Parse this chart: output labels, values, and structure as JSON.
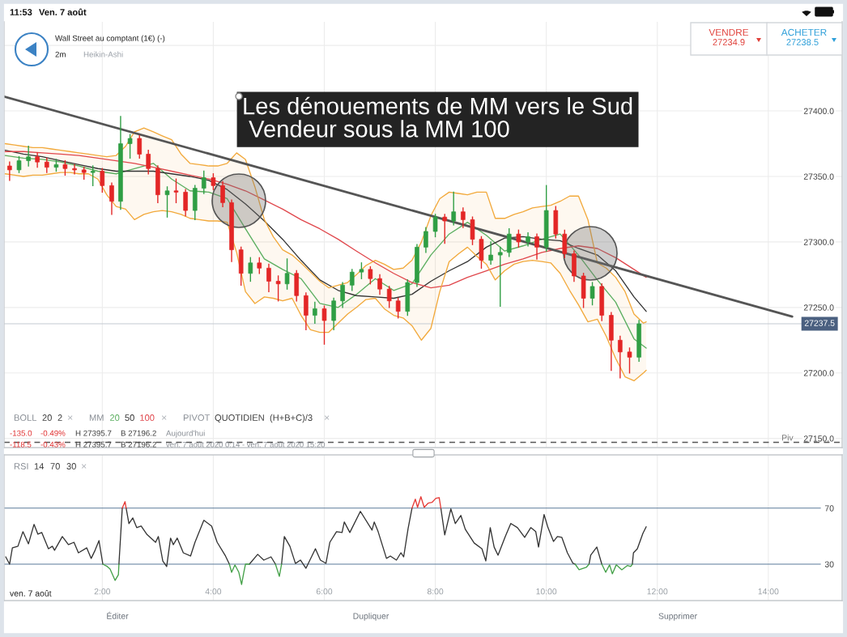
{
  "chart_data": [
    {
      "type": "candlestick",
      "title": "Wall Street au comptant (1€) (-)",
      "legend_title": "MM",
      "legend": "bottom left",
      "x": [
        0.33,
        0.5,
        0.67,
        0.83,
        1,
        1.17,
        1.33,
        1.5,
        1.67,
        1.83,
        2,
        2.17,
        2.33,
        2.5,
        2.67,
        2.83,
        3,
        3.17,
        3.33,
        3.5,
        3.67,
        3.83,
        4,
        4.17,
        4.33,
        4.5,
        4.67,
        4.83,
        5,
        5.17,
        5.33,
        5.5,
        5.67,
        5.83,
        6,
        6.17,
        6.33,
        6.5,
        6.67,
        6.83,
        7,
        7.17,
        7.33,
        7.5,
        7.67,
        7.83,
        8,
        8.17,
        8.33,
        8.5,
        8.67,
        8.83,
        9,
        9.17,
        9.33,
        9.5,
        9.67,
        9.83,
        10,
        10.17,
        10.33,
        10.5,
        10.67,
        10.83,
        11,
        11.17,
        11.33,
        11.5,
        11.67
      ],
      "ohlc": [
        [
          27358,
          27361,
          27347,
          27355
        ],
        [
          27355,
          27365,
          27353,
          27362
        ],
        [
          27362,
          27373,
          27358,
          27365
        ],
        [
          27365,
          27368,
          27357,
          27361
        ],
        [
          27361,
          27364,
          27353,
          27357
        ],
        [
          27357,
          27363,
          27354,
          27359
        ],
        [
          27359,
          27362,
          27351,
          27356
        ],
        [
          27356,
          27359,
          27352,
          27355
        ],
        [
          27355,
          27357,
          27348,
          27353
        ],
        [
          27353,
          27358,
          27343,
          27354
        ],
        [
          27354,
          27356,
          27338,
          27343
        ],
        [
          27343,
          27345,
          27321,
          27331
        ],
        [
          27331,
          27395.7,
          27325,
          27375
        ],
        [
          27375,
          27382,
          27364,
          27379
        ],
        [
          27379,
          27381,
          27364,
          27367
        ],
        [
          27367,
          27370,
          27352,
          27356
        ],
        [
          27356,
          27358,
          27330,
          27336
        ],
        [
          27336,
          27342,
          27319,
          27339
        ],
        [
          27339,
          27348,
          27330,
          27338
        ],
        [
          27338,
          27340,
          27320,
          27324
        ],
        [
          27324,
          27343,
          27317,
          27341
        ],
        [
          27341,
          27354,
          27337,
          27349
        ],
        [
          27349,
          27352,
          27340,
          27343
        ],
        [
          27343,
          27346,
          27327,
          27330
        ],
        [
          27330,
          27332,
          27285,
          27294
        ],
        [
          27294,
          27296,
          27267,
          27276
        ],
        [
          27276,
          27288,
          27270,
          27284
        ],
        [
          27284,
          27288,
          27276,
          27280
        ],
        [
          27280,
          27283,
          27262,
          27270
        ],
        [
          27270,
          27274,
          27255,
          27268
        ],
        [
          27268,
          27287,
          27264,
          27276
        ],
        [
          27276,
          27278,
          27255,
          27259
        ],
        [
          27259,
          27261,
          27233,
          27244
        ],
        [
          27244,
          27254,
          27238,
          27249
        ],
        [
          27249,
          27251,
          27222,
          27240
        ],
        [
          27240,
          27257,
          27233,
          27255
        ],
        [
          27255,
          27269,
          27250,
          27267
        ],
        [
          27267,
          27279,
          27263,
          27277
        ],
        [
          27277,
          27284,
          27272,
          27279
        ],
        [
          27279,
          27281,
          27268,
          27272
        ],
        [
          27272,
          27275,
          27260,
          27264
        ],
        [
          27264,
          27266,
          27250,
          27255
        ],
        [
          27255,
          27257,
          27242,
          27247
        ],
        [
          27247,
          27271,
          27244,
          27269
        ],
        [
          27269,
          27298,
          27266,
          27296
        ],
        [
          27296,
          27311,
          27292,
          27308
        ],
        [
          27308,
          27321,
          27304,
          27319
        ],
        [
          27319,
          27321,
          27299,
          27316
        ],
        [
          27316,
          27338,
          27313,
          27323
        ],
        [
          27323,
          27326,
          27311,
          27317
        ],
        [
          27317,
          27319,
          27298,
          27302
        ],
        [
          27302,
          27304,
          27280,
          27286
        ],
        [
          27286,
          27300,
          27283,
          27290
        ],
        [
          27290,
          27296,
          27251,
          27292
        ],
        [
          27292,
          27310,
          27289,
          27306
        ],
        [
          27306,
          27309,
          27296,
          27300
        ],
        [
          27300,
          27307,
          27297,
          27304
        ],
        [
          27304,
          27306,
          27287,
          27296
        ],
        [
          27296,
          27343,
          27293,
          27324
        ],
        [
          27324,
          27327,
          27303,
          27306
        ],
        [
          27306,
          27309,
          27288,
          27291
        ],
        [
          27291,
          27293,
          27270,
          27274
        ],
        [
          27274,
          27276,
          27250,
          27257
        ],
        [
          27257,
          27269,
          27252,
          27266
        ],
        [
          27266,
          27268,
          27240,
          27244
        ],
        [
          27244,
          27246,
          27202,
          27225
        ],
        [
          27225,
          27228,
          27196.2,
          27216
        ],
        [
          27216,
          27219,
          27200,
          27212
        ],
        [
          27212,
          27240,
          27209,
          27237.5
        ]
      ],
      "colors": [
        "#e32626",
        "#2f9e44",
        "#2f9e44",
        "#e32626",
        "#e32626",
        "#2f9e44",
        "#e32626",
        "#e32626",
        "#e32626",
        "#2f9e44",
        "#e32626",
        "#e32626",
        "#2f9e44",
        "#2f9e44",
        "#e32626",
        "#e32626",
        "#e32626",
        "#2f9e44",
        "#e32626",
        "#e32626",
        "#2f9e44",
        "#2f9e44",
        "#e32626",
        "#e32626",
        "#e32626",
        "#e32626",
        "#2f9e44",
        "#e32626",
        "#e32626",
        "#e32626",
        "#2f9e44",
        "#e32626",
        "#e32626",
        "#2f9e44",
        "#e32626",
        "#2f9e44",
        "#2f9e44",
        "#2f9e44",
        "#2f9e44",
        "#e32626",
        "#e32626",
        "#e32626",
        "#e32626",
        "#2f9e44",
        "#2f9e44",
        "#2f9e44",
        "#2f9e44",
        "#e32626",
        "#2f9e44",
        "#e32626",
        "#e32626",
        "#e32626",
        "#2f9e44",
        "#2f9e44",
        "#2f9e44",
        "#e32626",
        "#2f9e44",
        "#e32626",
        "#2f9e44",
        "#e32626",
        "#e32626",
        "#e32626",
        "#e32626",
        "#2f9e44",
        "#e32626",
        "#e32626",
        "#e32626",
        "#e32626",
        "#2f9e44"
      ],
      "series": [
        {
          "name": "20",
          "type": "line",
          "color": "#5aae5f",
          "x": [
            0.25,
            0.58,
            0.92,
            1.25,
            1.58,
            1.92,
            2.25,
            2.58,
            2.92,
            3.25,
            3.58,
            3.92,
            4.25,
            4.58,
            4.92,
            5.25,
            5.58,
            5.92,
            6.25,
            6.58,
            6.92,
            7.25,
            7.58,
            7.92,
            8.25,
            8.58,
            8.92,
            9.25,
            9.58,
            9.92,
            10.25,
            10.58,
            10.92,
            11.25,
            11.58,
            11.8
          ],
          "values": [
            27366,
            27364,
            27363,
            27361,
            27358,
            27354,
            27352,
            27356,
            27360,
            27348,
            27339,
            27338,
            27333,
            27310,
            27287,
            27279,
            27272,
            27253,
            27250,
            27260,
            27272,
            27263,
            27268,
            27290,
            27306,
            27315,
            27305,
            27293,
            27297,
            27302,
            27306,
            27290,
            27271,
            27254,
            27226,
            27219
          ]
        },
        {
          "name": "50",
          "type": "line",
          "color": "#333333",
          "x": [
            0.25,
            0.58,
            0.92,
            1.25,
            1.58,
            1.92,
            2.25,
            2.58,
            2.92,
            3.25,
            3.58,
            3.92,
            4.25,
            4.58,
            4.92,
            5.25,
            5.58,
            5.92,
            6.25,
            6.58,
            6.92,
            7.25,
            7.58,
            7.92,
            8.25,
            8.58,
            8.92,
            9.25,
            9.58,
            9.92,
            10.25,
            10.58,
            10.92,
            11.25,
            11.58,
            11.8
          ],
          "values": [
            27370,
            27367,
            27365,
            27362,
            27359,
            27356,
            27354,
            27354,
            27354,
            27352,
            27350,
            27347,
            27340,
            27329,
            27316,
            27302,
            27286,
            27271,
            27263,
            27259,
            27258,
            27257,
            27260,
            27270,
            27278,
            27285,
            27296,
            27303,
            27304,
            27302,
            27301,
            27295,
            27290,
            27278,
            27258,
            27247
          ]
        },
        {
          "name": "100",
          "type": "line",
          "color": "#e0474c",
          "x": [
            0.25,
            0.58,
            0.92,
            1.25,
            1.58,
            1.92,
            2.25,
            2.58,
            2.92,
            3.25,
            3.58,
            3.92,
            4.25,
            4.58,
            4.92,
            5.25,
            5.58,
            5.92,
            6.25,
            6.58,
            6.92,
            7.25,
            7.58,
            7.92,
            8.25,
            8.58,
            8.92,
            9.25,
            9.58,
            9.92,
            10.25,
            10.58,
            10.92,
            11.25,
            11.58,
            11.8
          ],
          "values": [
            27369,
            27369,
            27368,
            27367,
            27366,
            27364,
            27362,
            27360,
            27357,
            27354,
            27351,
            27348,
            27344,
            27339,
            27332,
            27325,
            27317,
            27310,
            27302,
            27293,
            27284,
            27276,
            27269,
            27265,
            27267,
            27273,
            27278,
            27283,
            27287,
            27292,
            27295,
            27297,
            27295,
            27288,
            27279,
            27273
          ]
        },
        {
          "type": "line",
          "color": "#f2a93b",
          "x": [
            0.25,
            0.42,
            0.58,
            0.75,
            0.92,
            1.08,
            1.25,
            1.42,
            1.58,
            1.75,
            1.92,
            2.08,
            2.25,
            2.42,
            2.58,
            2.75,
            2.92,
            3.08,
            3.25,
            3.42,
            3.58,
            3.75,
            3.92,
            4.08,
            4.25,
            4.42,
            4.58,
            4.75,
            4.92,
            5.08,
            5.25,
            5.42,
            5.58,
            5.75,
            5.92,
            6.08,
            6.25,
            6.42,
            6.58,
            6.75,
            6.92,
            7.08,
            7.25,
            7.42,
            7.58,
            7.75,
            7.92,
            8.08,
            8.25,
            8.42,
            8.58,
            8.75,
            8.92,
            9.08,
            9.25,
            9.42,
            9.58,
            9.75,
            9.92,
            10.08,
            10.25,
            10.42,
            10.58,
            10.75,
            10.92,
            11.08,
            11.25,
            11.42,
            11.58,
            11.75,
            11.8
          ],
          "values": [
            27375,
            27374,
            27373,
            27372,
            27372,
            27371,
            27370,
            27369,
            27368,
            27367,
            27366,
            27365,
            27366,
            27373,
            27384,
            27387,
            27384,
            27381,
            27378,
            27367,
            27360,
            27359,
            27358,
            27358,
            27360,
            27368,
            27363,
            27342,
            27317,
            27304,
            27294,
            27290,
            27284,
            27277,
            27270,
            27265,
            27267,
            27269,
            27275,
            27282,
            27286,
            27283,
            27279,
            27280,
            27286,
            27300,
            27320,
            27333,
            27338,
            27337,
            27336,
            27338,
            27338,
            27318,
            27318,
            27321,
            27323,
            27326,
            27327,
            27328,
            27331,
            27335,
            27335,
            27317,
            27284,
            27280,
            27273,
            27262,
            27245,
            27238,
            27239
          ],
          "upper": [
            27375,
            27374,
            27373,
            27372,
            27372,
            27371,
            27370,
            27369,
            27368,
            27367,
            27366,
            27365,
            27366,
            27373,
            27384,
            27387,
            27384,
            27381,
            27378,
            27367,
            27360,
            27359,
            27358,
            27358,
            27360,
            27368,
            27363,
            27342,
            27317,
            27304,
            27294,
            27290,
            27284,
            27277,
            27270,
            27265,
            27267,
            27269,
            27275,
            27282,
            27286,
            27283,
            27279,
            27280,
            27286,
            27300,
            27320,
            27333,
            27338,
            27337,
            27336,
            27338,
            27338,
            27318,
            27318,
            27321,
            27323,
            27326,
            27327,
            27328,
            27331,
            27335,
            27335,
            27317,
            27284,
            27280,
            27273,
            27262,
            27245,
            27238,
            27239
          ],
          "lower": [
            27352,
            27351,
            27350,
            27351,
            27351,
            27352,
            27353,
            27353,
            27352,
            27352,
            27348,
            27336,
            27327,
            27325,
            27317,
            27321,
            27323,
            27324,
            27323,
            27321,
            27318,
            27317,
            27316,
            27316,
            27315,
            27292,
            27262,
            27253,
            27258,
            27257,
            27255,
            27257,
            27244,
            27233,
            27231,
            27231,
            27238,
            27245,
            27250,
            27256,
            27257,
            27249,
            27244,
            27242,
            27236,
            27225,
            27234,
            27262,
            27285,
            27291,
            27296,
            27289,
            27283,
            27271,
            27278,
            27283,
            27285,
            27286,
            27285,
            27284,
            27276,
            27263,
            27252,
            27239,
            27241,
            27228,
            27211,
            27197,
            27194,
            27200,
            27202
          ]
        },
        {
          "type": "line",
          "color": "#f2a93b",
          "x": [
            0.25,
            0.42,
            0.58,
            0.75,
            0.92,
            1.08,
            1.25,
            1.42,
            1.58,
            1.75,
            1.92,
            2.08,
            2.25,
            2.42,
            2.58,
            2.75,
            2.92,
            3.08,
            3.25,
            3.42,
            3.58,
            3.75,
            3.92,
            4.08,
            4.25,
            4.42,
            4.58,
            4.75,
            4.92,
            5.08,
            5.25,
            5.42,
            5.58,
            5.75,
            5.92,
            6.08,
            6.25,
            6.42,
            6.58,
            6.75,
            6.92,
            7.08,
            7.25,
            7.42,
            7.58,
            7.75,
            7.92,
            8.08,
            8.25,
            8.42,
            8.58,
            8.75,
            8.92,
            9.08,
            9.25,
            9.42,
            9.58,
            9.75,
            9.92,
            10.08,
            10.25,
            10.42,
            10.58,
            10.75,
            10.92,
            11.08,
            11.25,
            11.42,
            11.58,
            11.75,
            11.8
          ],
          "values": [
            27352,
            27351,
            27350,
            27351,
            27351,
            27352,
            27353,
            27353,
            27352,
            27352,
            27348,
            27336,
            27327,
            27325,
            27317,
            27321,
            27323,
            27324,
            27323,
            27321,
            27318,
            27317,
            27316,
            27316,
            27315,
            27292,
            27262,
            27253,
            27258,
            27257,
            27255,
            27257,
            27244,
            27233,
            27231,
            27231,
            27238,
            27245,
            27250,
            27256,
            27257,
            27249,
            27244,
            27242,
            27236,
            27225,
            27234,
            27262,
            27285,
            27291,
            27296,
            27289,
            27283,
            27271,
            27278,
            27283,
            27285,
            27286,
            27285,
            27284,
            27276,
            27263,
            27252,
            27239,
            27241,
            27228,
            27211,
            27197,
            27194,
            27200,
            27202
          ]
        },
        {
          "type": "line",
          "color": "#555555",
          "x": [
            0.23,
            14.43
          ],
          "values": [
            27411,
            27243
          ]
        }
      ],
      "xlim": [
        0.23,
        15.33
      ],
      "xticks": [
        {
          "value": 2,
          "label": null
        },
        {
          "value": 4,
          "label": null
        },
        {
          "value": 6,
          "label": null
        },
        {
          "value": 8,
          "label": null
        },
        {
          "value": 10,
          "label": null
        },
        {
          "value": 12,
          "label": null
        },
        {
          "value": 14,
          "label": null
        }
      ],
      "ylim": [
        27143,
        27468
      ],
      "yticks": [
        {
          "value": 27150,
          "label": "27150.0"
        },
        {
          "value": 27200,
          "label": "27200.0"
        },
        {
          "value": 27250,
          "label": "27250.0"
        },
        {
          "value": 27300,
          "label": "27300.0"
        },
        {
          "value": 27350,
          "label": "27350.0"
        },
        {
          "value": 27400,
          "label": "27400.0"
        },
        {
          "value": 27450,
          "label": null
        }
      ],
      "tick_labels": "y",
      "grid": true,
      "ref_lines": [
        {
          "axis": "y",
          "value": 27237.5,
          "color": "#c3c9d2"
        },
        {
          "axis": "y",
          "value": 27147,
          "color": "#555555",
          "line_style": "dashed"
        }
      ],
      "annotations": [
        "Les dénouements de MM vers le Sud\n Vendeur sous la MM 100",
        "11:53",
        "Ven. 7 août",
        "2m",
        "Heikin-Ashi",
        "VENDRE",
        "27234.9",
        "ACHETER",
        "27238.5",
        "BOLL",
        "20",
        "2",
        "×",
        "×",
        "PIVOT",
        "QUOTIDIEN",
        "(H+B+C)/3",
        "×",
        "-135.0",
        "-0.49%",
        "H 27395.7",
        "B 27196.2",
        "Aujourd'hui",
        "-118.5",
        "-0.43%",
        "H 27395.7",
        "B 27196.2",
        "ven. 7 août 2020 0:14 - ven. 7 août 2020 15:20",
        "Éditer",
        "Dupliquer",
        "Supprimer",
        "27237.5",
        {
          "text": "Piv",
          "x": 14.45,
          "y": 27147
        }
      ]
    },
    {
      "type": "line",
      "series": [
        {
          "type": "line",
          "color": "#333333",
          "x": [
            0.26,
            0.33,
            0.38,
            0.48,
            0.57,
            0.67,
            0.77,
            0.84,
            0.91,
            1.03,
            1.1,
            1.14,
            1.28,
            1.39,
            1.49,
            1.57,
            1.72,
            1.8,
            1.87,
            1.94,
            2.01,
            null,
            2.3,
            2.36,
            null,
            2.43,
            2.48,
            2.55,
            2.62,
            2.7,
            2.8,
            2.96,
            3.01,
            3.09,
            3.16,
            3.23,
            3.28,
            3.35,
            3.46,
            3.59,
            3.67,
            3.83,
            3.97,
            4.07,
            4.22,
            4.29,
            null,
            4.65,
            4.8,
            4.91,
            5.04,
            5.12,
            null,
            5.23,
            5.28,
            5.38,
            5.48,
            5.57,
            5.67,
            5.84,
            5.93,
            6.03,
            6.1,
            6.22,
            6.32,
            6.36,
            6.46,
            6.65,
            6.86,
            6.9,
            6.97,
            7.12,
            7.19,
            7.3,
            7.38,
            7.43,
            7.51,
            7.58,
            null,
            8.1,
            8.17,
            8.28,
            8.36,
            8.46,
            8.54,
            8.7,
            8.84,
            8.91,
            8.99,
            9.06,
            9.13,
            9.26,
            9.36,
            9.48,
            9.61,
            9.72,
            9.81,
            9.86,
            9.96,
            10.03,
            10.13,
            10.2,
            10.28,
            10.38,
            10.48,
            10.52,
            null,
            10.77,
            10.8,
            10.91,
            11.0,
            null,
            11.55,
            11.57,
            11.64,
            11.74,
            11.8
          ],
          "values": [
            35.2,
            30,
            41.6,
            42.8,
            53.2,
            44.5,
            58.4,
            51.4,
            52.6,
            41.0,
            42.8,
            39.9,
            49.7,
            43.9,
            45.6,
            38.1,
            41.6,
            34.1,
            39.9,
            46.8,
            30,
            null,
            30,
            70,
            null,
            70,
            59.0,
            63.0,
            56.1,
            57.2,
            51.4,
            45.6,
            49.7,
            32.3,
            28.3,
            48.6,
            43.9,
            48.6,
            38.1,
            35.8,
            45.6,
            61.3,
            57.2,
            45.6,
            35.8,
            30,
            null,
            30,
            37.0,
            32.9,
            35.2,
            30,
            null,
            30,
            49.7,
            42.8,
            30.5,
            32.9,
            27.1,
            41.0,
            32.9,
            30.6,
            45.6,
            53.2,
            52.6,
            60.1,
            52.6,
            67.7,
            54.3,
            60.1,
            53.2,
            34.1,
            35.8,
            32.9,
            38.1,
            35.2,
            55.5,
            70,
            null,
            70,
            50.9,
            69.5,
            59.0,
            64.8,
            54.9,
            45.1,
            41.0,
            32.3,
            56.1,
            42.2,
            36.4,
            49.7,
            59.0,
            56.1,
            49.1,
            56.1,
            53.2,
            42.2,
            65.4,
            56.1,
            46.2,
            49.7,
            49.1,
            38.1,
            30.6,
            30,
            null,
            30,
            36.4,
            42.2,
            30,
            null,
            30,
            38.1,
            41.0,
            52.0,
            56.7
          ]
        },
        {
          "type": "line",
          "color": "#e53935",
          "x": [
            2.36,
            2.41,
            2.43,
            null,
            7.58,
            7.64,
            7.68,
            7.74,
            7.8,
            7.87,
            7.94,
            8.01,
            8.07,
            8.1
          ],
          "values": [
            70,
            74.6,
            70,
            null,
            70,
            76.4,
            70.6,
            78.1,
            70.6,
            73.5,
            74.1,
            77.0,
            77.5,
            70
          ]
        },
        {
          "type": "line",
          "color": "#43a047",
          "x": [
            2.01,
            2.09,
            2.14,
            2.23,
            2.29,
            2.3,
            null,
            4.29,
            4.33,
            4.39,
            4.46,
            4.51,
            4.55,
            4.58,
            4.65,
            null,
            5.12,
            5.19,
            5.23,
            null,
            10.52,
            10.59,
            10.72,
            10.77,
            null,
            11.0,
            11.07,
            11.14,
            11.19,
            11.26,
            11.36,
            11.46,
            11.52,
            11.55
          ],
          "values": [
            30,
            28.3,
            26.5,
            18.4,
            22.4,
            30,
            null,
            30,
            24.2,
            29.4,
            24.2,
            15.5,
            24.2,
            30,
            30,
            null,
            30,
            21.3,
            30,
            null,
            30,
            26.0,
            27.7,
            30,
            null,
            30,
            24.2,
            29.5,
            23.1,
            29.5,
            26.0,
            29.0,
            28.3,
            30
          ]
        }
      ],
      "xlim": [
        0.23,
        15.33
      ],
      "xticks": [
        {
          "value": 2,
          "label": "2:00"
        },
        {
          "value": 4,
          "label": "4:00"
        },
        {
          "value": 6,
          "label": "6:00"
        },
        {
          "value": 8,
          "label": "8:00"
        },
        {
          "value": 10,
          "label": "10:00"
        },
        {
          "value": 12,
          "label": "12:00"
        },
        {
          "value": 14,
          "label": "14:00"
        }
      ],
      "ylim": [
        4,
        108
      ],
      "yticks": [
        70,
        30
      ],
      "grid": "x",
      "ref_lines": [
        {
          "axis": "y",
          "value": 70,
          "color": "#5b7b9a"
        },
        {
          "axis": "y",
          "value": 30,
          "color": "#5b7b9a"
        }
      ],
      "annotations": [
        "RSI",
        "14",
        "70",
        "30",
        "×",
        "ven. 7 août"
      ]
    }
  ]
}
